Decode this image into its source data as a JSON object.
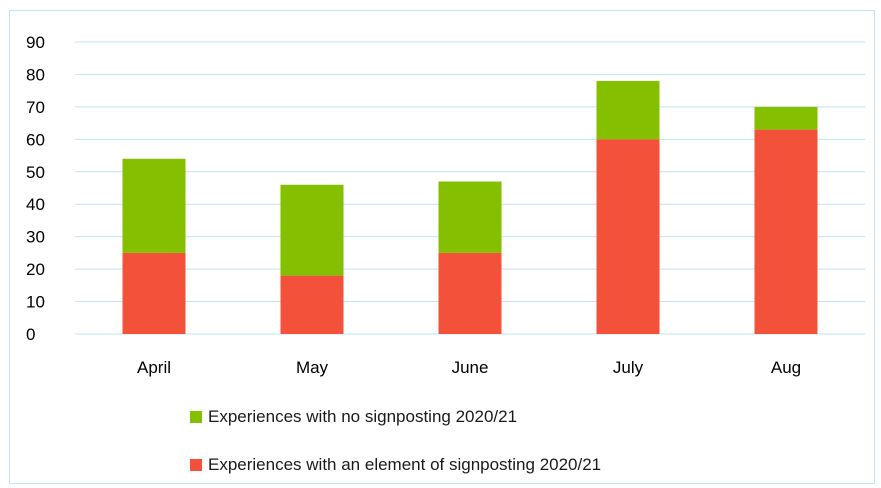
{
  "chart_data": {
    "type": "bar",
    "stacked": true,
    "categories": [
      "April",
      "May",
      "June",
      "July",
      "Aug"
    ],
    "series": [
      {
        "name": "Experiences with an element of signposting 2020/21",
        "values": [
          25,
          18,
          25,
          60,
          63
        ],
        "color": "#f4513a"
      },
      {
        "name": "Experiences with no signposting 2020/21",
        "values": [
          29,
          28,
          22,
          18,
          7
        ],
        "color": "#84bf00"
      }
    ],
    "ylim": [
      0,
      90
    ],
    "yticks": [
      0,
      10,
      20,
      30,
      40,
      50,
      60,
      70,
      80,
      90
    ],
    "grid": true,
    "gridColor": "#bfe3f3",
    "legend_position": "bottom"
  },
  "legend": {
    "items": [
      {
        "label": "Experiences with no signposting 2020/21",
        "color": "#84bf00"
      },
      {
        "label": "Experiences with an element of signposting 2020/21",
        "color": "#f4513a"
      }
    ]
  }
}
